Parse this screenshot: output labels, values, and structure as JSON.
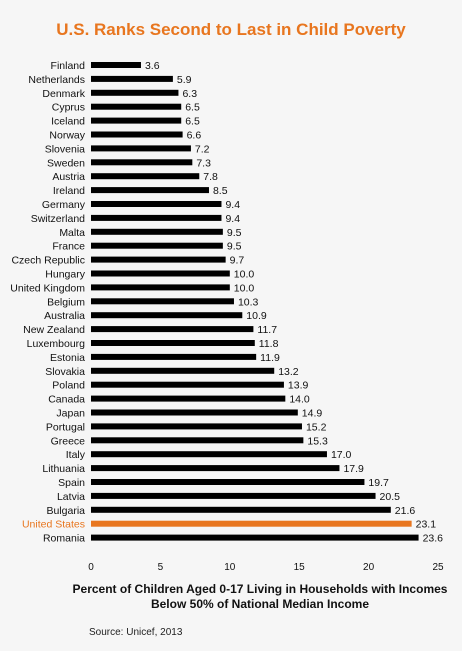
{
  "chart_data": {
    "type": "bar",
    "orientation": "horizontal",
    "title": "U.S. Ranks Second to Last in Child Poverty",
    "xlabel": "Percent of Children Aged 0-17 Living in Households with Incomes Below 50% of National Median Income",
    "source": "Source: Unicef, 2013",
    "xlim": [
      0,
      25
    ],
    "xticks": [
      "0",
      "5",
      "10",
      "15",
      "20",
      "25"
    ],
    "grid": false,
    "categories": [
      "Finland",
      "Netherlands",
      "Denmark",
      "Cyprus",
      "Iceland",
      "Norway",
      "Slovenia",
      "Sweden",
      "Austria",
      "Ireland",
      "Germany",
      "Switzerland",
      "Malta",
      "France",
      "Czech Republic",
      "Hungary",
      "United Kingdom",
      "Belgium",
      "Australia",
      "New Zealand",
      "Luxembourg",
      "Estonia",
      "Slovakia",
      "Poland",
      "Canada",
      "Japan",
      "Portugal",
      "Greece",
      "Italy",
      "Lithuania",
      "Spain",
      "Latvia",
      "Bulgaria",
      "United States",
      "Romania"
    ],
    "values": [
      3.6,
      5.9,
      6.3,
      6.5,
      6.5,
      6.6,
      7.2,
      7.3,
      7.8,
      8.5,
      9.4,
      9.4,
      9.5,
      9.5,
      9.7,
      10.0,
      10.0,
      10.3,
      10.9,
      11.7,
      11.8,
      11.9,
      13.2,
      13.9,
      14.0,
      14.9,
      15.2,
      15.3,
      17.0,
      17.9,
      19.7,
      20.5,
      21.6,
      23.1,
      23.6
    ],
    "value_labels": [
      "3.6",
      "5.9",
      "6.3",
      "6.5",
      "6.5",
      "6.6",
      "7.2",
      "7.3",
      "7.8",
      "8.5",
      "9.4",
      "9.4",
      "9.5",
      "9.5",
      "9.7",
      "10.0",
      "10.0",
      "10.3",
      "10.9",
      "11.7",
      "11.8",
      "11.9",
      "13.2",
      "13.9",
      "14.0",
      "14.9",
      "15.2",
      "15.3",
      "17.0",
      "17.9",
      "19.7",
      "20.5",
      "21.6",
      "23.1",
      "23.6"
    ],
    "highlight_category": "United States",
    "colors": {
      "bar": "#000000",
      "highlight": "#e8761f",
      "title": "#e8761f",
      "background": "#f6f6f6"
    }
  }
}
